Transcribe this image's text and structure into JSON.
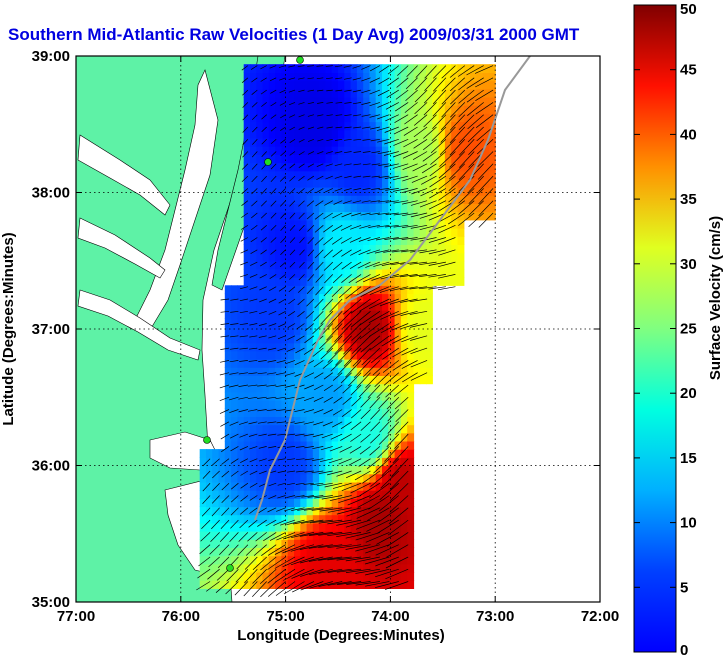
{
  "chart_data": {
    "type": "heatmap",
    "title": "Southern Mid-Atlantic Raw Velocities (1 Day Avg) 2009/03/31 2000 GMT",
    "xlabel": "Longitude (Degrees:Minutes)",
    "ylabel": "Latitude (Degrees:Minutes)",
    "xlim": [
      -77,
      -72
    ],
    "ylim": [
      35,
      39
    ],
    "x_ticks": [
      -77,
      -76,
      -75,
      -74,
      -73,
      -72
    ],
    "x_tick_labels": [
      "77:00",
      "76:00",
      "75:00",
      "74:00",
      "73:00",
      "72:00"
    ],
    "y_ticks": [
      35,
      36,
      37,
      38,
      39
    ],
    "y_tick_labels": [
      "35:00",
      "36:00",
      "37:00",
      "38:00",
      "39:00"
    ],
    "grid": true,
    "colorbar": {
      "label": "Surface Velocity (cm/s)",
      "range": [
        0,
        50
      ],
      "ticks": [
        0,
        5,
        10,
        15,
        20,
        25,
        30,
        35,
        40,
        45,
        50
      ],
      "tick_labels": [
        "0",
        "5",
        "10",
        "15",
        "20",
        "25",
        "30",
        "35",
        "40",
        "45",
        "50"
      ],
      "colormap": "jet"
    },
    "land_color": "#5ef2a6",
    "field_samples": [
      {
        "lon": -74.7,
        "lat": 38.5,
        "speed": 5
      },
      {
        "lon": -74.3,
        "lat": 38.2,
        "speed": 8
      },
      {
        "lon": -74.9,
        "lat": 37.6,
        "speed": 7
      },
      {
        "lon": -75.1,
        "lat": 37.1,
        "speed": 9
      },
      {
        "lon": -74.5,
        "lat": 37.6,
        "speed": 18
      },
      {
        "lon": -73.7,
        "lat": 38.3,
        "speed": 27
      },
      {
        "lon": -73.3,
        "lat": 38.3,
        "speed": 40
      },
      {
        "lon": -74.2,
        "lat": 37.0,
        "speed": 48
      },
      {
        "lon": -73.7,
        "lat": 37.0,
        "speed": 30
      },
      {
        "lon": -74.6,
        "lat": 36.5,
        "speed": 14
      },
      {
        "lon": -74.2,
        "lat": 36.2,
        "speed": 20
      },
      {
        "lon": -75.0,
        "lat": 36.0,
        "speed": 9
      },
      {
        "lon": -74.1,
        "lat": 35.6,
        "speed": 48
      },
      {
        "lon": -74.6,
        "lat": 35.3,
        "speed": 45
      },
      {
        "lon": -73.9,
        "lat": 35.9,
        "speed": 47
      }
    ]
  }
}
